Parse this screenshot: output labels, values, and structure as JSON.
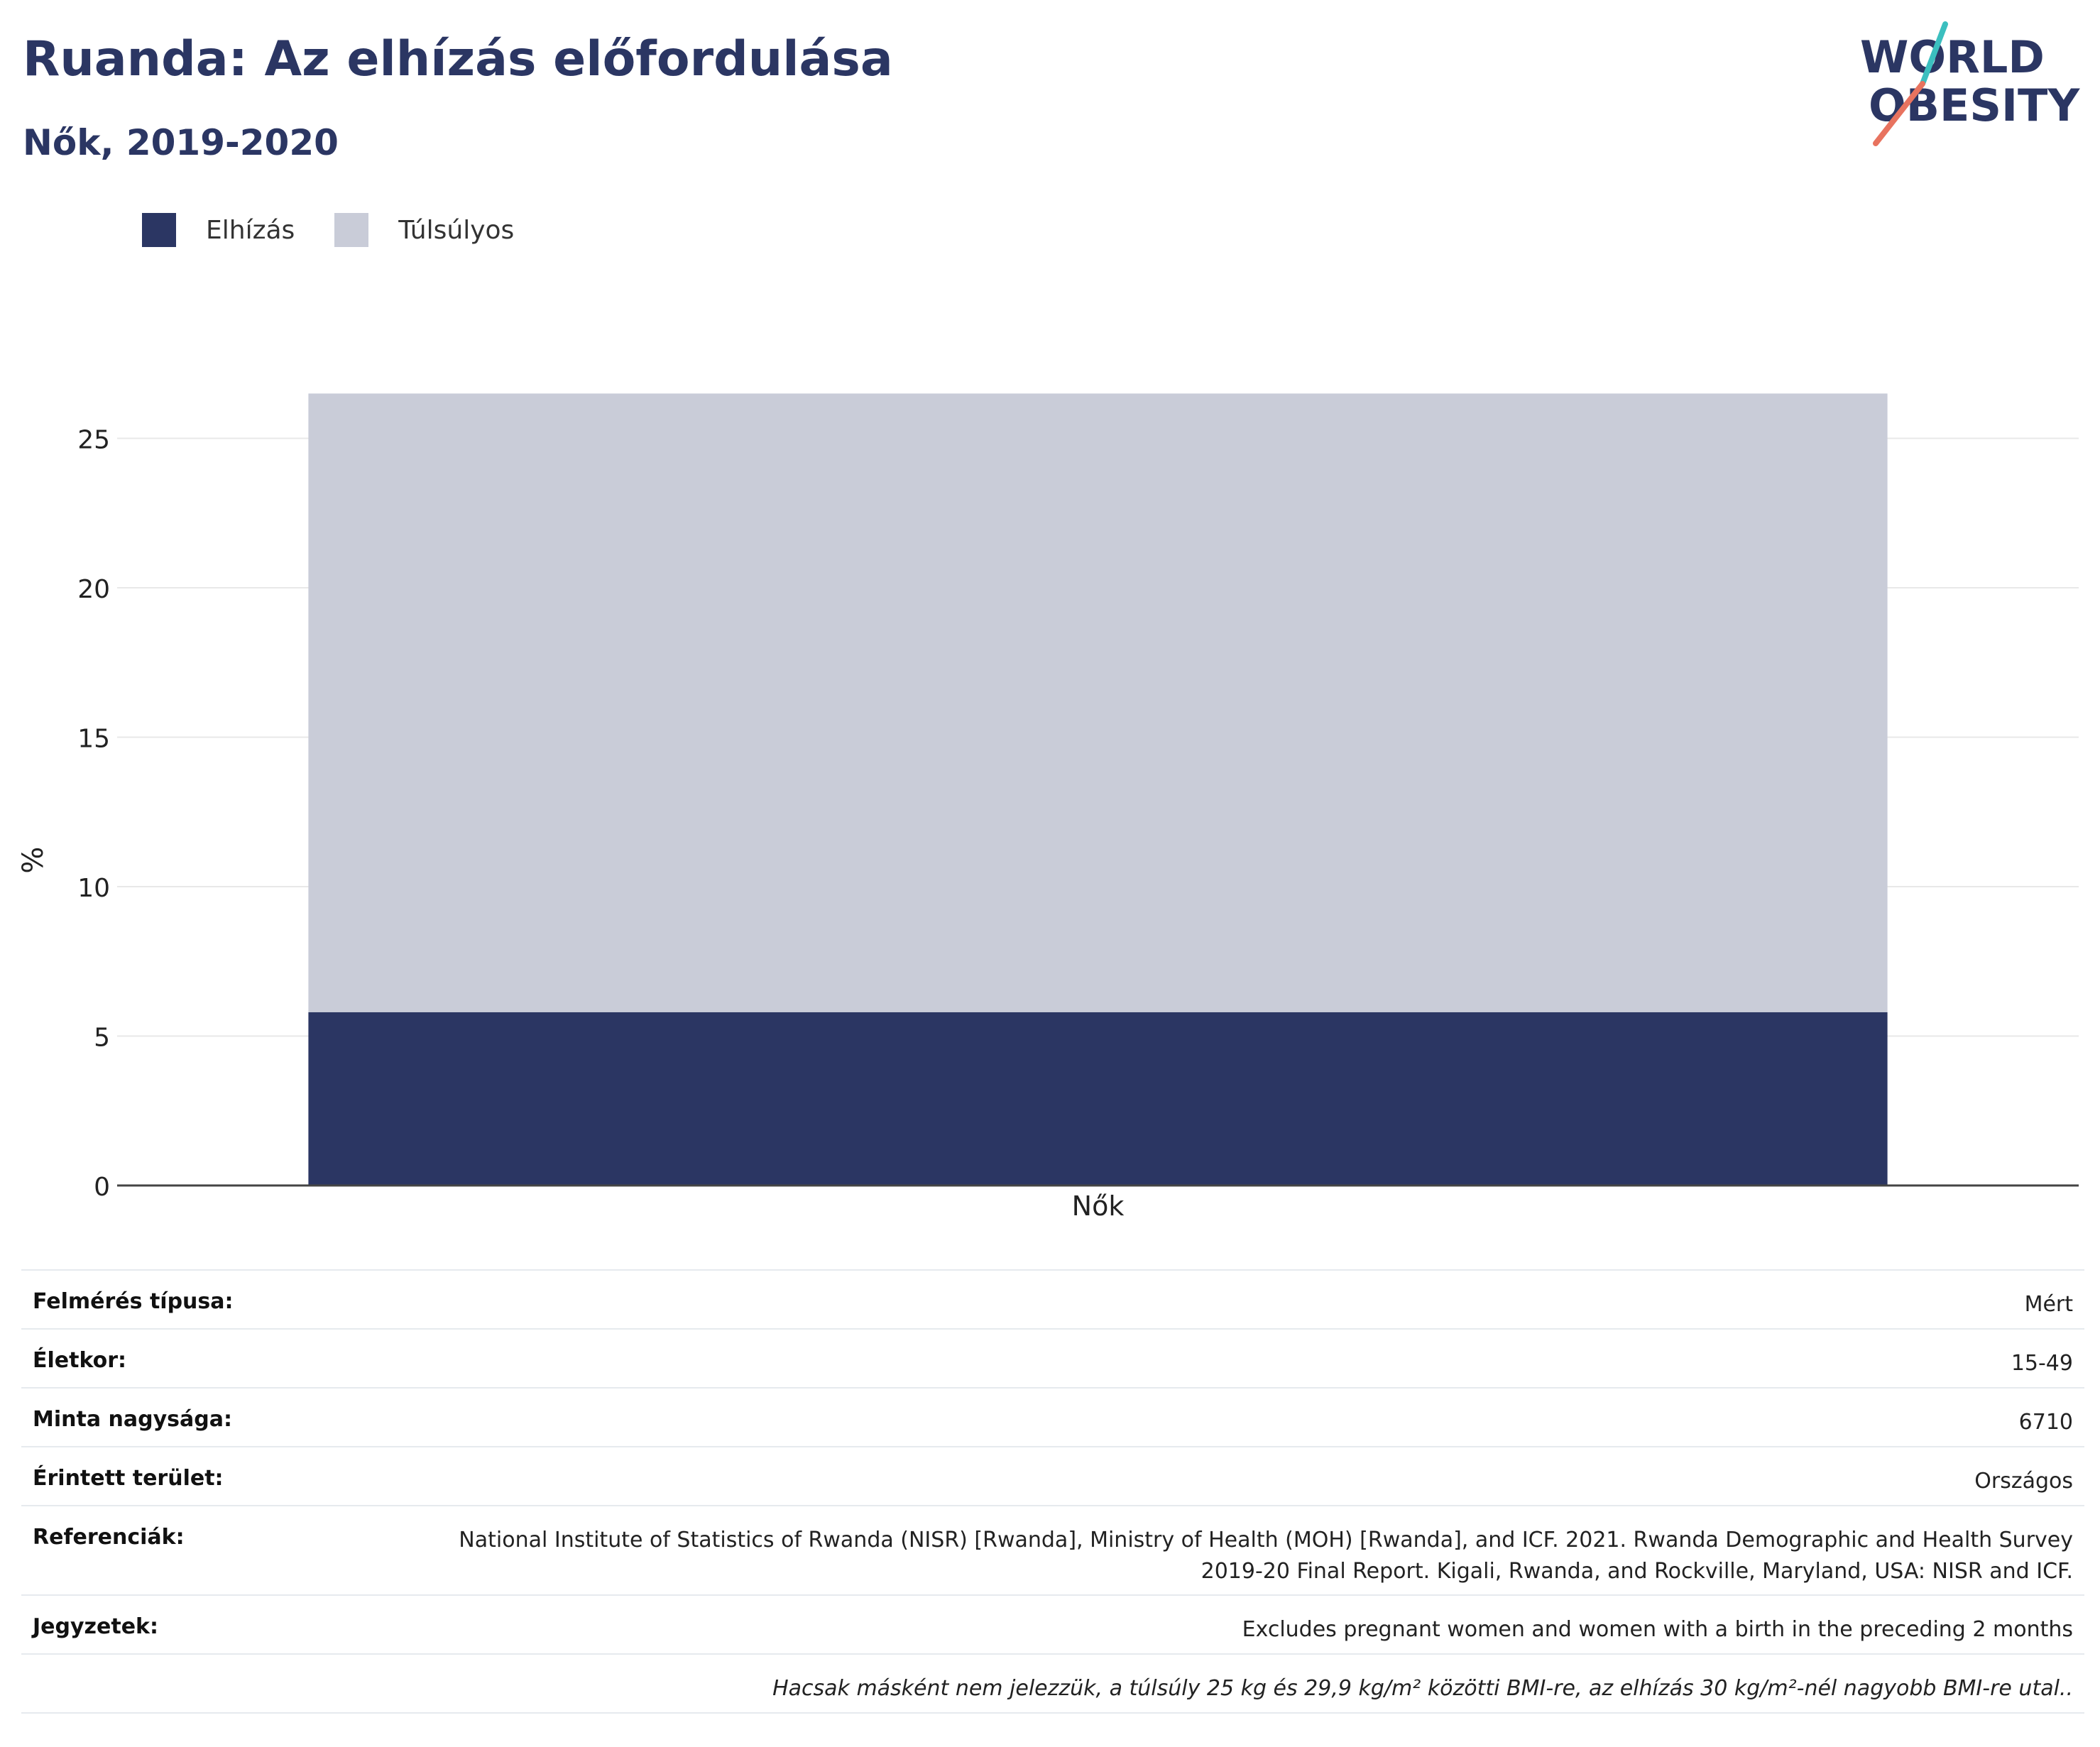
{
  "header": {
    "title": "Ruanda: Az elhízás előfordulása",
    "subtitle": "Nők, 2019-2020"
  },
  "logo": {
    "line1": "WORLD",
    "line2": "OBESITY",
    "icon": "world-obesity-logo"
  },
  "legend": [
    {
      "label": "Elhízás",
      "color": "#2b3663"
    },
    {
      "label": "Túlsúlyos",
      "color": "#c9ccd8"
    }
  ],
  "chart_data": {
    "type": "bar",
    "stacked": true,
    "categories": [
      "Nők"
    ],
    "series": [
      {
        "name": "Elhízás",
        "values": [
          5.8
        ],
        "color": "#2b3663"
      },
      {
        "name": "Túlsúlyos",
        "values": [
          20.7
        ],
        "color": "#c9ccd8"
      }
    ],
    "ylabel": "%",
    "xlabel": "",
    "ylim": [
      0,
      27
    ],
    "yticks": [
      0,
      5,
      10,
      15,
      20,
      25
    ],
    "grid": true,
    "legend_position": "top-left"
  },
  "info": {
    "survey_type": {
      "label": "Felmérés típusa:",
      "value": "Mért"
    },
    "age": {
      "label": "Életkor:",
      "value": "15-49"
    },
    "sample_size": {
      "label": "Minta nagysága:",
      "value": "6710"
    },
    "area": {
      "label": "Érintett terület:",
      "value": "Országos"
    },
    "references": {
      "label": "Referenciák:",
      "value": "National Institute of Statistics of Rwanda (NISR) [Rwanda], Ministry of Health (MOH) [Rwanda], and ICF. 2021. Rwanda Demographic and Health Survey 2019-20 Final Report. Kigali, Rwanda, and Rockville, Maryland, USA: NISR and ICF."
    },
    "notes": {
      "label": "Jegyzetek:",
      "value": "Excludes pregnant women and women with a birth in the preceding 2 months"
    },
    "footnote": "Hacsak másként nem jelezzük, a túlsúly 25 kg és 29,9 kg/m² közötti BMI-re, az elhízás 30 kg/m²-nél nagyobb BMI-re utal.."
  }
}
